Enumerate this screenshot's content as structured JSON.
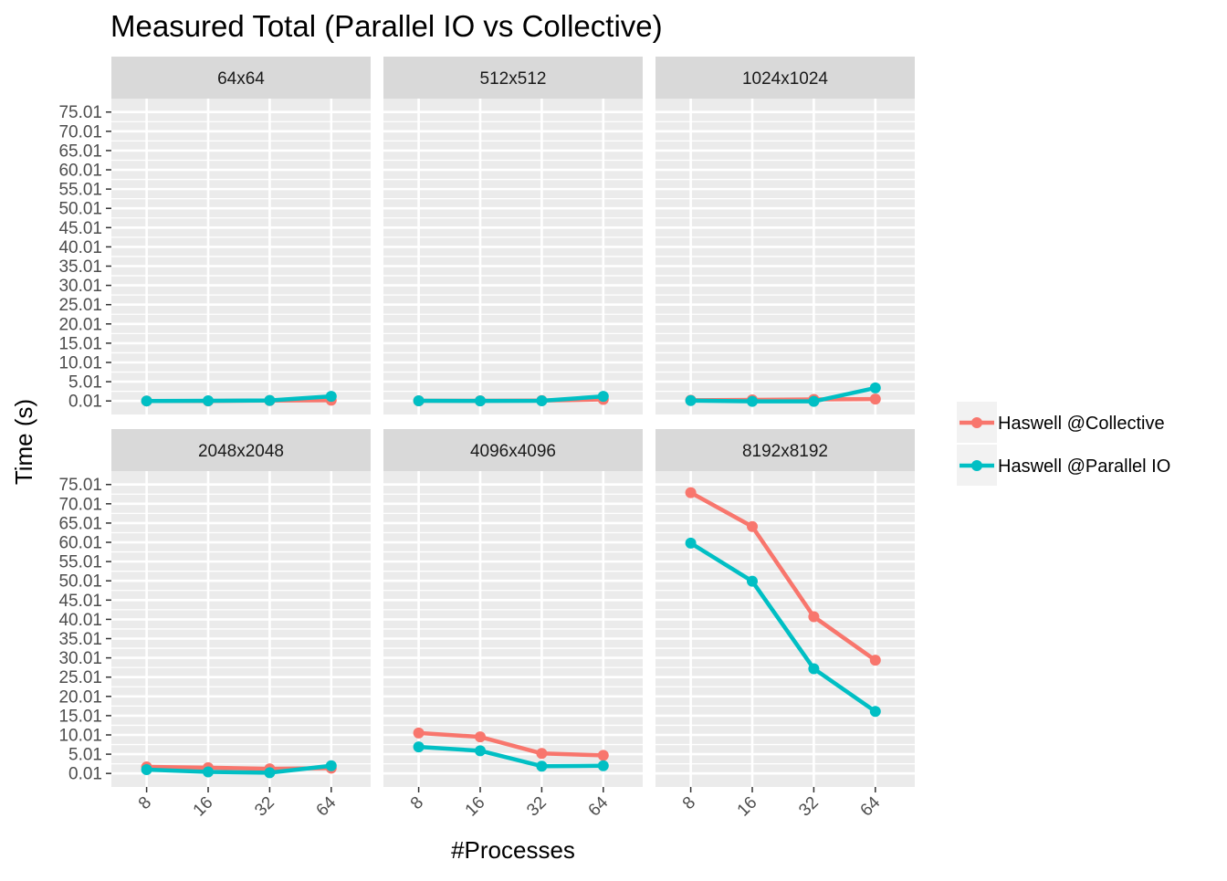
{
  "chart_data": {
    "type": "line",
    "title": "Measured Total (Parallel IO vs Collective)",
    "xlabel": "#Processes",
    "ylabel": "Time (s)",
    "x": [
      "8",
      "16",
      "32",
      "64"
    ],
    "yticks": [
      "0.01",
      "5.01",
      "10.01",
      "15.01",
      "20.01",
      "25.01",
      "30.01",
      "35.01",
      "40.01",
      "45.01",
      "50.01",
      "55.01",
      "60.01",
      "65.01",
      "70.01",
      "75.01"
    ],
    "ylim": [
      -3.5,
      78.5
    ],
    "grid": true,
    "legend_position": "right",
    "series_names": [
      "Haswell @Collective",
      "Haswell @Parallel IO"
    ],
    "colors": {
      "Haswell @Collective": "#F8766D",
      "Haswell @Parallel IO": "#00BFC4"
    },
    "panels": [
      {
        "label": "64x64",
        "series": [
          {
            "name": "Haswell @Collective",
            "values": [
              0.01,
              0.01,
              0.1,
              0.2
            ]
          },
          {
            "name": "Haswell @Parallel IO",
            "values": [
              0.01,
              0.05,
              0.15,
              1.2
            ]
          }
        ]
      },
      {
        "label": "512x512",
        "series": [
          {
            "name": "Haswell @Collective",
            "values": [
              0.05,
              0.05,
              0.1,
              0.4
            ]
          },
          {
            "name": "Haswell @Parallel IO",
            "values": [
              0.05,
              0.02,
              0.05,
              1.2
            ]
          }
        ]
      },
      {
        "label": "1024x1024",
        "series": [
          {
            "name": "Haswell @Collective",
            "values": [
              0.2,
              0.3,
              0.4,
              0.5
            ]
          },
          {
            "name": "Haswell @Parallel IO",
            "values": [
              0.1,
              -0.1,
              -0.1,
              3.4
            ]
          }
        ]
      },
      {
        "label": "2048x2048",
        "series": [
          {
            "name": "Haswell @Collective",
            "values": [
              1.7,
              1.5,
              1.2,
              1.4
            ]
          },
          {
            "name": "Haswell @Parallel IO",
            "values": [
              1.0,
              0.4,
              0.2,
              2.0
            ]
          }
        ]
      },
      {
        "label": "4096x4096",
        "series": [
          {
            "name": "Haswell @Collective",
            "values": [
              10.5,
              9.5,
              5.2,
              4.7
            ]
          },
          {
            "name": "Haswell @Parallel IO",
            "values": [
              6.9,
              5.9,
              1.9,
              2.0
            ]
          }
        ]
      },
      {
        "label": "8192x8192",
        "series": [
          {
            "name": "Haswell @Collective",
            "values": [
              72.9,
              64.1,
              40.7,
              29.4
            ]
          },
          {
            "name": "Haswell @Parallel IO",
            "values": [
              59.8,
              49.9,
              27.2,
              16.1
            ]
          }
        ]
      }
    ]
  }
}
